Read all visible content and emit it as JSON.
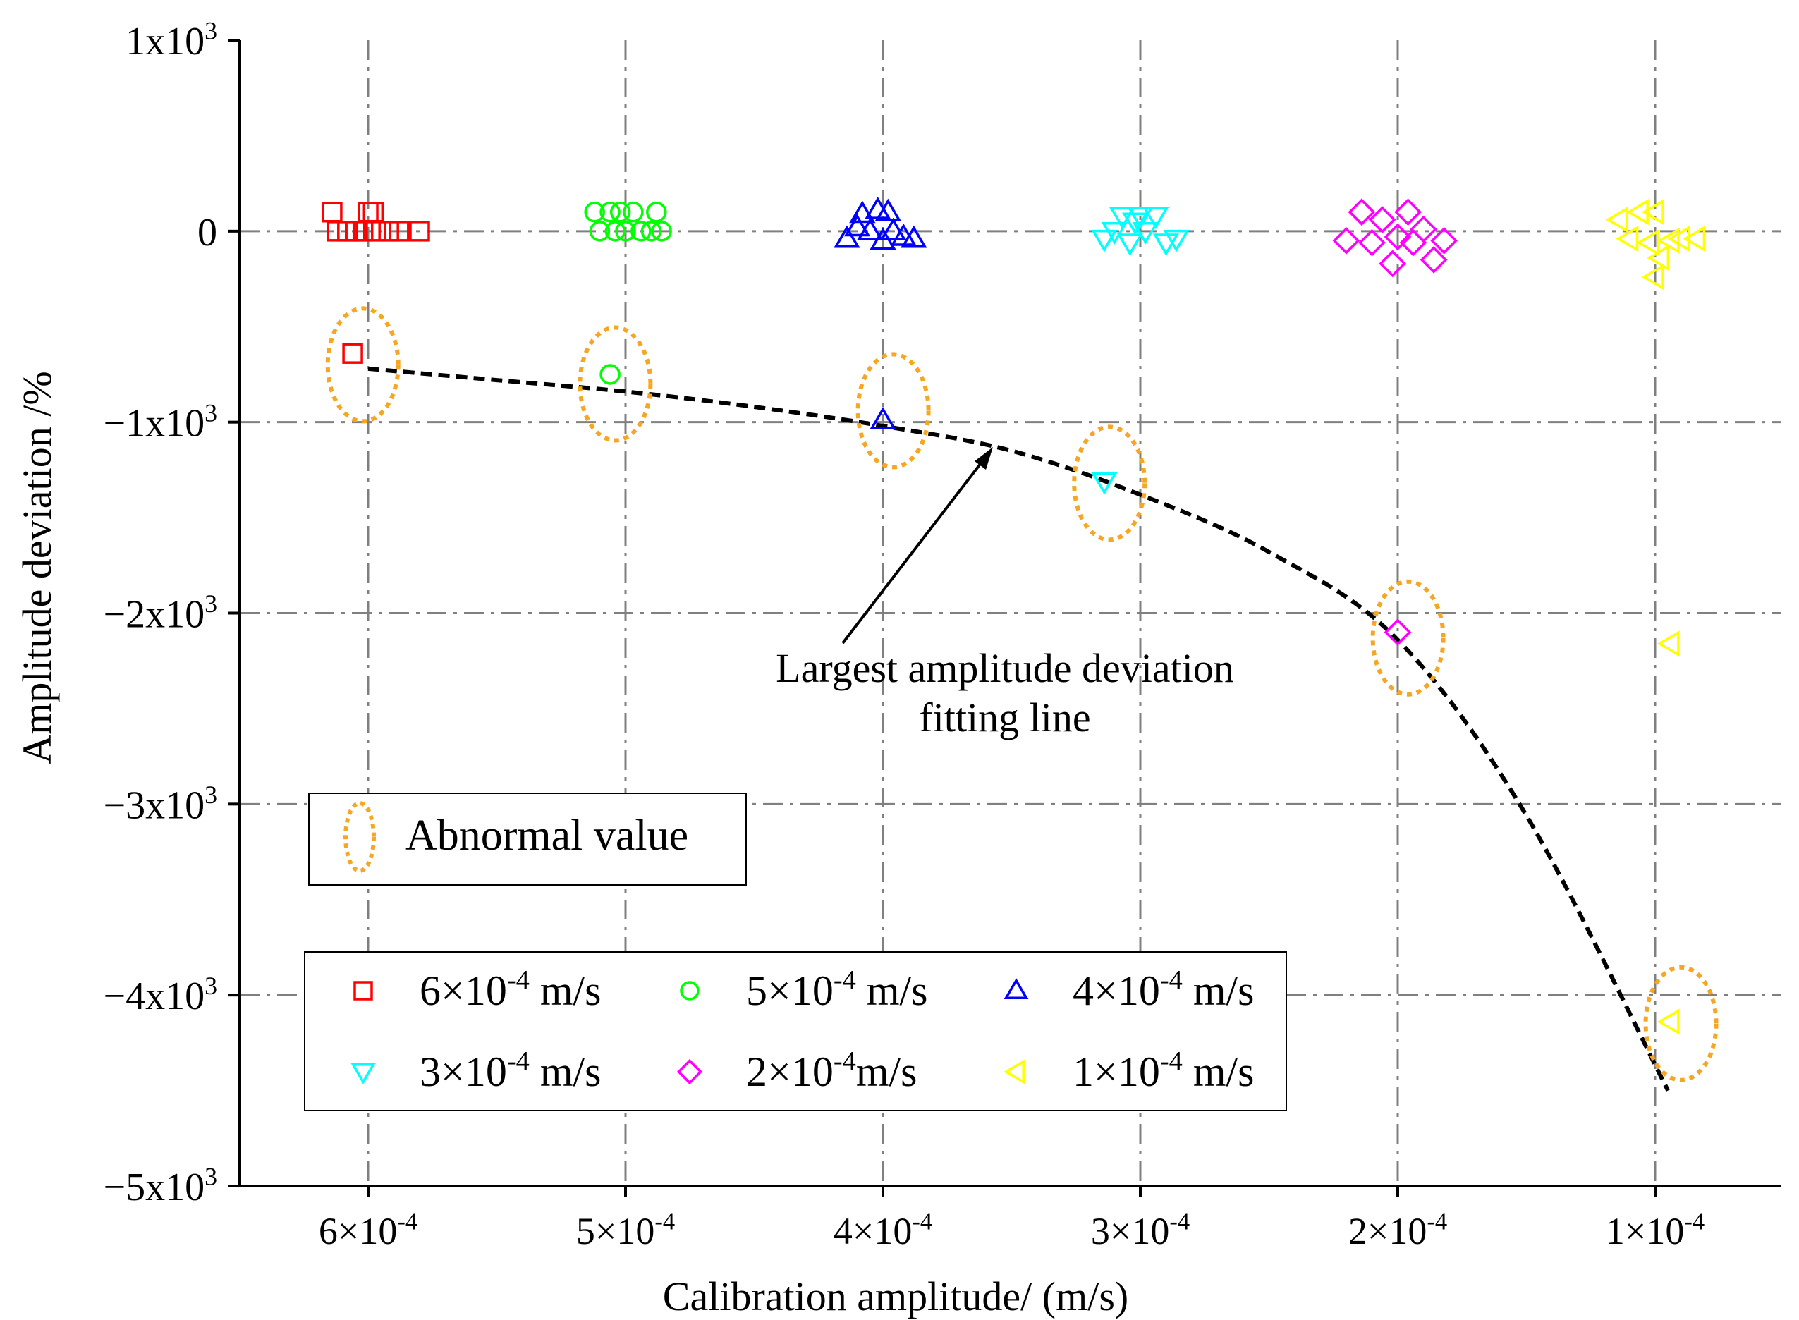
{
  "chart_data": {
    "type": "scatter",
    "title": "",
    "xlabel": "Calibration amplitude/ (m/s)",
    "ylabel": "Amplitude deviation /%",
    "ylim": [
      -5000,
      1000
    ],
    "grid": true,
    "categories": [
      {
        "mant": "6×10",
        "exp": "-4"
      },
      {
        "mant": "5×10",
        "exp": "-4"
      },
      {
        "mant": "4×10",
        "exp": "-4"
      },
      {
        "mant": "3×10",
        "exp": "-4"
      },
      {
        "mant": "2×10",
        "exp": "-4"
      },
      {
        "mant": "1×10",
        "exp": "-4"
      }
    ],
    "yticks": [
      {
        "value": 1000,
        "mant": "1x10",
        "exp": "3"
      },
      {
        "value": 0,
        "mant": "0",
        "exp": ""
      },
      {
        "value": -1000,
        "mant": "−1x10",
        "exp": "3"
      },
      {
        "value": -2000,
        "mant": "−2x10",
        "exp": "3"
      },
      {
        "value": -3000,
        "mant": "−3x10",
        "exp": "3"
      },
      {
        "value": -4000,
        "mant": "−4x10",
        "exp": "3"
      },
      {
        "value": -5000,
        "mant": "−5x10",
        "exp": "3"
      }
    ],
    "series": [
      {
        "name": "6×10-4 m/s",
        "marker": "square",
        "color": "#ff0000",
        "points": [
          [
            -0.14,
            100
          ],
          [
            -0.12,
            0
          ],
          [
            -0.08,
            0
          ],
          [
            -0.05,
            0
          ],
          [
            -0.02,
            0
          ],
          [
            0.0,
            100
          ],
          [
            0.02,
            100
          ],
          [
            0.03,
            0
          ],
          [
            0.08,
            0
          ],
          [
            0.12,
            0
          ],
          [
            0.2,
            0
          ],
          [
            -0.06,
            -640
          ]
        ]
      },
      {
        "name": "5×10-4 m/s",
        "marker": "circle",
        "color": "#00ff00",
        "points": [
          [
            -0.12,
            100
          ],
          [
            -0.1,
            0
          ],
          [
            -0.06,
            100
          ],
          [
            -0.04,
            0
          ],
          [
            -0.02,
            100
          ],
          [
            0.0,
            0
          ],
          [
            0.03,
            100
          ],
          [
            0.06,
            0
          ],
          [
            0.1,
            0
          ],
          [
            0.12,
            100
          ],
          [
            0.14,
            0
          ],
          [
            -0.06,
            -750
          ]
        ]
      },
      {
        "name": "4×10-4 m/s",
        "marker": "triangle-up",
        "color": "#0000ff",
        "points": [
          [
            -0.14,
            -40
          ],
          [
            -0.1,
            20
          ],
          [
            -0.08,
            90
          ],
          [
            -0.05,
            0
          ],
          [
            -0.02,
            110
          ],
          [
            0.0,
            -50
          ],
          [
            0.02,
            100
          ],
          [
            0.04,
            0
          ],
          [
            0.08,
            -30
          ],
          [
            0.12,
            -40
          ],
          [
            0.0,
            -990
          ]
        ]
      },
      {
        "name": "3×10-4 m/s",
        "marker": "triangle-down",
        "color": "#00ffff",
        "points": [
          [
            -0.14,
            -40
          ],
          [
            -0.1,
            0
          ],
          [
            -0.07,
            80
          ],
          [
            -0.04,
            -60
          ],
          [
            -0.02,
            50
          ],
          [
            0.0,
            80
          ],
          [
            0.02,
            0
          ],
          [
            0.06,
            80
          ],
          [
            0.1,
            -60
          ],
          [
            0.14,
            -40
          ],
          [
            -0.14,
            -1310
          ]
        ]
      },
      {
        "name": "2×10-4 m/s",
        "marker": "diamond",
        "color": "#ff00ff",
        "points": [
          [
            -0.2,
            -50
          ],
          [
            -0.14,
            100
          ],
          [
            -0.1,
            -60
          ],
          [
            -0.06,
            60
          ],
          [
            -0.02,
            -170
          ],
          [
            0.0,
            -30
          ],
          [
            0.04,
            100
          ],
          [
            0.06,
            -60
          ],
          [
            0.1,
            10
          ],
          [
            0.14,
            -150
          ],
          [
            0.18,
            -50
          ],
          [
            0.0,
            -2100
          ]
        ]
      },
      {
        "name": "1×10-4 m/s",
        "marker": "triangle-left",
        "color": "#ffff00",
        "points": [
          [
            -0.14,
            60
          ],
          [
            -0.1,
            -40
          ],
          [
            -0.06,
            100
          ],
          [
            -0.02,
            -60
          ],
          [
            0.0,
            100
          ],
          [
            0.02,
            -140
          ],
          [
            0.06,
            -50
          ],
          [
            0.1,
            -40
          ],
          [
            0.16,
            -40
          ],
          [
            0.0,
            -240
          ],
          [
            0.06,
            -2160
          ],
          [
            0.06,
            -4140
          ]
        ]
      }
    ],
    "fit_line": {
      "label_line1": "Largest amplitude deviation",
      "label_line2": "fitting line",
      "points": [
        [
          0,
          -720
        ],
        [
          0.5,
          -780
        ],
        [
          1,
          -840
        ],
        [
          1.5,
          -920
        ],
        [
          2,
          -1020
        ],
        [
          2.5,
          -1150
        ],
        [
          3,
          -1380
        ],
        [
          3.5,
          -1680
        ],
        [
          4,
          -2140
        ],
        [
          4.5,
          -3060
        ],
        [
          5.05,
          -4500
        ]
      ]
    },
    "abnormal_markers": [
      [
        -0.02,
        -700
      ],
      [
        -0.04,
        -800
      ],
      [
        0.04,
        -940
      ],
      [
        -0.12,
        -1320
      ],
      [
        0.04,
        -2130
      ],
      [
        0.1,
        -4150
      ]
    ],
    "abnormal_legend_label": "Abnormal value",
    "legend": [
      {
        "mant": "6×10",
        "exp": "-4",
        "unit": " m/s",
        "marker": "square",
        "color": "#ff0000"
      },
      {
        "mant": "5×10",
        "exp": "-4",
        "unit": " m/s",
        "marker": "circle",
        "color": "#00ff00"
      },
      {
        "mant": "4×10",
        "exp": "-4",
        "unit": " m/s",
        "marker": "triangle-up",
        "color": "#0000ff"
      },
      {
        "mant": "3×10",
        "exp": "-4",
        "unit": " m/s",
        "marker": "triangle-down",
        "color": "#00ffff"
      },
      {
        "mant": "2×10",
        "exp": "-4",
        "unit": "m/s",
        "marker": "diamond",
        "color": "#ff00ff"
      },
      {
        "mant": "1×10",
        "exp": "-4",
        "unit": " m/s",
        "marker": "triangle-left",
        "color": "#ffff00"
      }
    ],
    "colors": {
      "grid": "#808080",
      "ellipse": "#f5a623",
      "fit": "#000000"
    }
  }
}
